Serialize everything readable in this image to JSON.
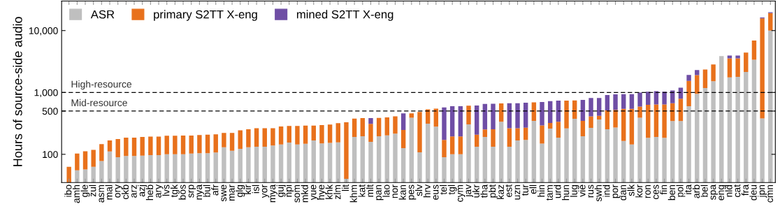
{
  "chart_data": {
    "type": "bar",
    "stacked": true,
    "ylabel": "Hours of source-side audio",
    "log": true,
    "ylim": [
      35,
      30000
    ],
    "yticks": [
      100,
      500,
      {
        "value": 1000,
        "label": "1,000"
      },
      {
        "value": 10000,
        "label": "10,000"
      }
    ],
    "grid": false,
    "legend": "top left",
    "categories": [
      "ibo",
      "amh",
      "gle",
      "zul",
      "asm",
      "mal",
      "ory",
      "ckb",
      "arz",
      "azj",
      "heb",
      "ary",
      "lvs",
      "tgk",
      "bos",
      "srp",
      "nya",
      "bul",
      "afr",
      "swe",
      "mar",
      "glg",
      "kir",
      "isl",
      "yor",
      "mya",
      "guj",
      "npi",
      "som",
      "mkd",
      "yue",
      "hye",
      "khk",
      "zlm",
      "lit",
      "khm",
      "kat",
      "mlt",
      "pan",
      "lao",
      "nor",
      "kan",
      "pes",
      "slv",
      "hrv",
      "eus",
      "tel",
      "tgl",
      "cym",
      "jav",
      "ukr",
      "tha",
      "pbt",
      "kaz",
      "est",
      "uzn",
      "tur",
      "ell",
      "hin",
      "tam",
      "urd",
      "hun",
      "lug",
      "vie",
      "rus",
      "swh",
      "ind",
      "por",
      "dan",
      "slk",
      "kor",
      "ron",
      "ces",
      "fin",
      "ben",
      "pol",
      "ita",
      "arb",
      "bel",
      "spa",
      "eng",
      "nld",
      "cat",
      "fra",
      "deu",
      "jpn",
      "cmn"
    ],
    "series": [
      {
        "name": "ASR",
        "color": "#bfbfbf",
        "values": [
          null,
          55,
          57,
          63,
          78,
          111,
          90,
          94,
          94,
          95,
          97,
          97,
          100,
          100,
          100,
          103,
          104,
          104,
          107,
          130,
          114,
          123,
          130,
          133,
          133,
          139,
          144,
          155,
          144,
          148,
          168,
          150,
          153,
          156,
          40,
          191,
          196,
          159,
          196,
          203,
          216,
          126,
          389,
          108,
          313,
          280,
          90,
          100,
          100,
          305,
          133,
          191,
          133,
          336,
          133,
          168,
          171,
          347,
          149,
          260,
          186,
          263,
          375,
          196,
          268,
          365,
          254,
          272,
          164,
          144,
          389,
          185,
          191,
          185,
          344,
          344,
          598,
          952,
          1178,
          1520,
          3860,
          1754,
          1782,
          2140,
          3375,
          381,
          10000
        ]
      },
      {
        "name": "primary S2TT X-eng",
        "color": "#e8711c",
        "values": [
          63,
          48,
          55,
          55,
          68,
          57,
          86,
          92,
          92,
          96,
          96,
          96,
          100,
          100,
          101,
          98,
          101,
          104,
          103,
          91,
          107,
          122,
          124,
          132,
          132,
          126,
          138,
          132,
          143,
          144,
          124,
          147,
          149,
          162,
          290,
          187,
          189,
          151,
          192,
          192,
          196,
          121,
          69,
          374,
          221,
          267,
          81,
          95,
          95,
          305,
          75,
          61,
          121,
          328,
          132,
          97,
          99,
          346,
          145,
          61,
          150,
          473,
          367,
          151,
          144,
          53,
          258,
          252,
          380,
          400,
          204,
          445,
          450,
          456,
          326,
          449,
          937,
          953,
          1163,
          1307,
          null,
          1802,
          1774,
          2275,
          3529,
          15370,
          9100
        ]
      },
      {
        "name": "mined S2TT X-eng",
        "color": "#6f4ea5",
        "values": [
          null,
          null,
          null,
          null,
          null,
          null,
          null,
          null,
          null,
          null,
          null,
          null,
          null,
          null,
          null,
          null,
          null,
          null,
          null,
          null,
          null,
          null,
          null,
          null,
          null,
          null,
          null,
          null,
          null,
          null,
          null,
          null,
          null,
          null,
          null,
          null,
          null,
          75,
          null,
          null,
          null,
          211,
          null,
          null,
          null,
          null,
          403,
          404,
          404,
          null,
          407,
          399,
          404,
          null,
          405,
          405,
          411,
          null,
          405,
          404,
          400,
          null,
          null,
          408,
          403,
          397,
          398,
          406,
          394,
          394,
          403,
          400,
          407,
          389,
          407,
          400,
          386,
          396,
          null,
          null,
          null,
          383,
          383,
          null,
          null,
          500,
          670
        ]
      }
    ],
    "ref_lines": [
      {
        "axis": "y",
        "value": 1000,
        "label": "High-resource",
        "color": "#000000",
        "line_style": "dashed"
      },
      {
        "axis": "y",
        "value": 500,
        "label": "Mid-resource",
        "color": "#000000",
        "line_style": "dashed"
      }
    ]
  }
}
